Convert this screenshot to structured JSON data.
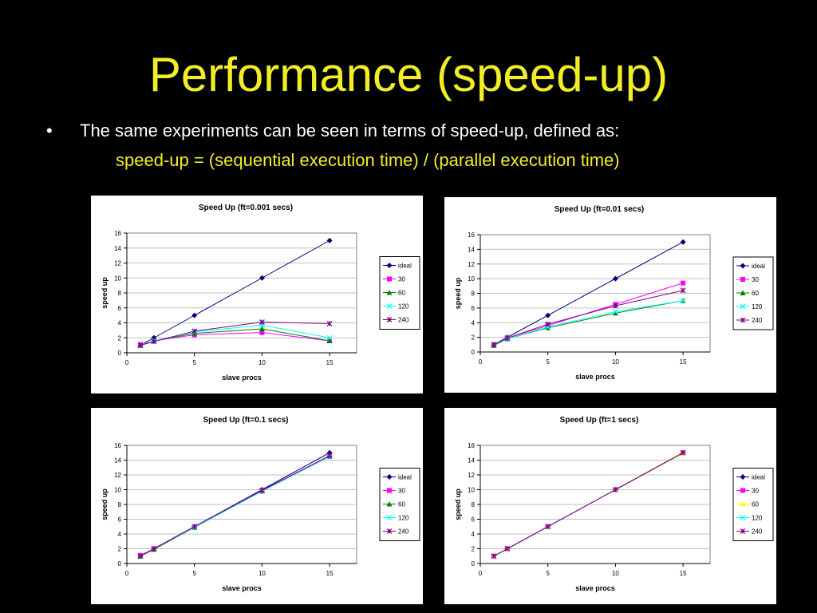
{
  "slide": {
    "title": "Performance (speed-up)",
    "bullet_symbol": "•",
    "bullet_text": "The same experiments can be seen in terms of speed-up, defined as:",
    "formula": "speed-up = (sequential execution time) / (parallel execution time)"
  },
  "legend_colors": {
    "ideal": "#000080",
    "30": "#ff00ff",
    "60": "#008000",
    "120": "#00ffff",
    "240": "#800080",
    "60_yellow": "#ffff00"
  },
  "chart_data": [
    {
      "type": "line",
      "title": "Speed Up (ft=0.001 secs)",
      "xlabel": "slave procs",
      "ylabel": "speed up",
      "xlim": [
        0,
        17
      ],
      "ylim": [
        0,
        16
      ],
      "xticks": [
        0,
        5,
        10,
        15
      ],
      "yticks": [
        0,
        2,
        4,
        6,
        8,
        10,
        12,
        14,
        16
      ],
      "grid": true,
      "legend_position": "right",
      "series": [
        {
          "name": "ideal",
          "color": "#000080",
          "marker": "diamond",
          "x": [
            1,
            2,
            5,
            10,
            15
          ],
          "y": [
            1,
            2,
            5,
            10,
            15
          ]
        },
        {
          "name": "30",
          "color": "#ff00ff",
          "marker": "square",
          "x": [
            1,
            2,
            5,
            10,
            15
          ],
          "y": [
            1.1,
            1.6,
            2.4,
            2.7,
            1.6
          ]
        },
        {
          "name": "60",
          "color": "#008000",
          "marker": "triangle",
          "x": [
            1,
            2,
            5,
            10,
            15
          ],
          "y": [
            1,
            1.6,
            2.6,
            3.2,
            1.6
          ]
        },
        {
          "name": "120",
          "color": "#00ffff",
          "marker": "x",
          "x": [
            1,
            2,
            5,
            10,
            15
          ],
          "y": [
            1,
            1.6,
            2.8,
            3.7,
            2.0
          ]
        },
        {
          "name": "240",
          "color": "#800080",
          "marker": "star",
          "x": [
            1,
            2,
            5,
            10,
            15
          ],
          "y": [
            1,
            1.5,
            2.9,
            4.1,
            3.9
          ]
        }
      ]
    },
    {
      "type": "line",
      "title": "Speed Up (ft=0.01 secs)",
      "xlabel": "slave procs",
      "ylabel": "speed up",
      "xlim": [
        0,
        17
      ],
      "ylim": [
        0,
        16
      ],
      "xticks": [
        0,
        5,
        10,
        15
      ],
      "yticks": [
        0,
        2,
        4,
        6,
        8,
        10,
        12,
        14,
        16
      ],
      "grid": true,
      "legend_position": "right",
      "series": [
        {
          "name": "ideal",
          "color": "#000080",
          "marker": "diamond",
          "x": [
            1,
            2,
            5,
            10,
            15
          ],
          "y": [
            1,
            2,
            5,
            10,
            15
          ]
        },
        {
          "name": "30",
          "color": "#ff00ff",
          "marker": "square",
          "x": [
            1,
            2,
            5,
            10,
            15
          ],
          "y": [
            1.0,
            1.9,
            3.6,
            6.5,
            9.4
          ]
        },
        {
          "name": "60",
          "color": "#008000",
          "marker": "triangle",
          "x": [
            1,
            2,
            5,
            10,
            15
          ],
          "y": [
            0.9,
            1.8,
            3.3,
            5.3,
            7.0
          ]
        },
        {
          "name": "120",
          "color": "#00ffff",
          "marker": "x",
          "x": [
            1,
            2,
            5,
            10,
            15
          ],
          "y": [
            1.0,
            1.8,
            3.4,
            5.5,
            7.0
          ]
        },
        {
          "name": "240",
          "color": "#800080",
          "marker": "star",
          "x": [
            1,
            2,
            5,
            10,
            15
          ],
          "y": [
            1.0,
            1.9,
            3.8,
            6.3,
            8.4
          ]
        }
      ]
    },
    {
      "type": "line",
      "title": "Speed Up (ft=0.1 secs)",
      "xlabel": "slave procs",
      "ylabel": "speed up",
      "xlim": [
        0,
        17
      ],
      "ylim": [
        0,
        16
      ],
      "xticks": [
        0,
        5,
        10,
        15
      ],
      "yticks": [
        0,
        2,
        4,
        6,
        8,
        10,
        12,
        14,
        16
      ],
      "grid": true,
      "legend_position": "right",
      "series": [
        {
          "name": "ideal",
          "color": "#000080",
          "marker": "diamond",
          "x": [
            1,
            2,
            5,
            10,
            15
          ],
          "y": [
            1,
            2,
            5,
            10,
            15
          ]
        },
        {
          "name": "30",
          "color": "#ff00ff",
          "marker": "square",
          "x": [
            1,
            2,
            5,
            10,
            15
          ],
          "y": [
            1.1,
            2.0,
            4.9,
            9.9,
            14.6
          ]
        },
        {
          "name": "60",
          "color": "#008000",
          "marker": "triangle",
          "x": [
            1,
            2,
            5,
            10,
            15
          ],
          "y": [
            1.0,
            1.9,
            4.9,
            9.8,
            14.5
          ]
        },
        {
          "name": "120",
          "color": "#00ffff",
          "marker": "x",
          "x": [
            1,
            2,
            5,
            10,
            15
          ],
          "y": [
            1.0,
            2.0,
            4.9,
            9.8,
            14.5
          ]
        },
        {
          "name": "240",
          "color": "#800080",
          "marker": "star",
          "x": [
            1,
            2,
            5,
            10,
            15
          ],
          "y": [
            1.0,
            2.0,
            5.0,
            9.9,
            14.6
          ]
        }
      ]
    },
    {
      "type": "line",
      "title": "Speed Up (ft=1 secs)",
      "xlabel": "slave procs",
      "ylabel": "speed up",
      "xlim": [
        0,
        17
      ],
      "ylim": [
        0,
        16
      ],
      "xticks": [
        0,
        5,
        10,
        15
      ],
      "yticks": [
        0,
        2,
        4,
        6,
        8,
        10,
        12,
        14,
        16
      ],
      "grid": true,
      "legend_position": "right",
      "series": [
        {
          "name": "ideal",
          "color": "#000080",
          "marker": "diamond",
          "x": [
            1,
            2,
            5,
            10,
            15
          ],
          "y": [
            1,
            2,
            5,
            10,
            15
          ]
        },
        {
          "name": "30",
          "color": "#ff00ff",
          "marker": "square",
          "x": [
            1,
            2,
            5,
            10,
            15
          ],
          "y": [
            1.0,
            2.0,
            5.0,
            10.0,
            15.0
          ]
        },
        {
          "name": "60",
          "color": "#ffff00",
          "marker": "triangle",
          "x": [
            1,
            2,
            5,
            10,
            15
          ],
          "y": [
            1.0,
            2.0,
            5.0,
            10.0,
            14.9
          ]
        },
        {
          "name": "120",
          "color": "#00ffff",
          "marker": "x",
          "x": [
            1,
            2,
            5,
            10,
            15
          ],
          "y": [
            1.0,
            2.0,
            5.0,
            10.0,
            15.0
          ]
        },
        {
          "name": "240",
          "color": "#800080",
          "marker": "star",
          "x": [
            1,
            2,
            5,
            10,
            15
          ],
          "y": [
            1.0,
            2.0,
            5.0,
            10.0,
            15.0
          ]
        }
      ]
    }
  ]
}
